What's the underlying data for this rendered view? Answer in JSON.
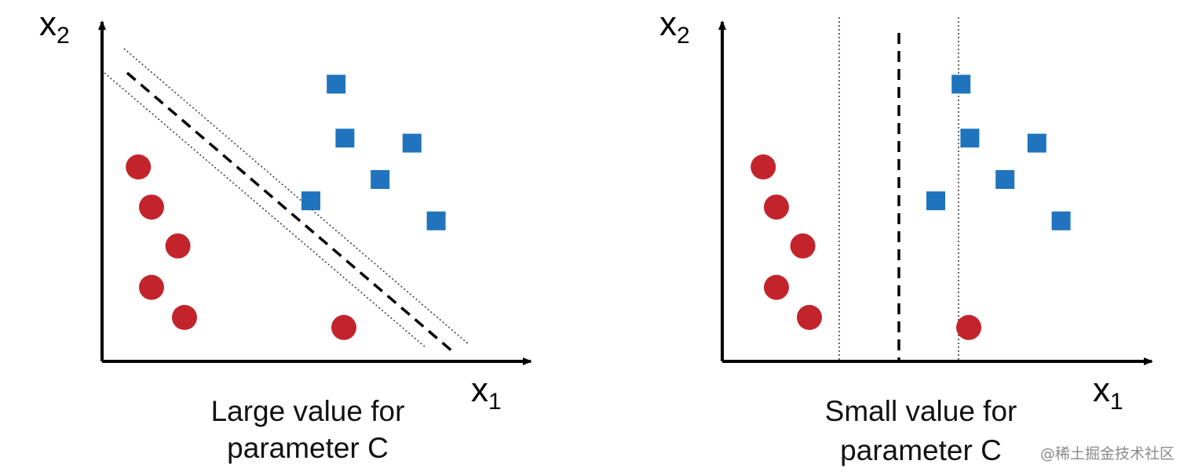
{
  "colors": {
    "axis": "#000000",
    "class_red": "#c3242b",
    "class_blue": "#1f74bd"
  },
  "panels": [
    {
      "id": "large-c",
      "axes": {
        "y_label": "x",
        "y_sub": "2",
        "x_label": "x",
        "x_sub": "1"
      },
      "caption": {
        "line1": "Large value for",
        "line2": "parameter C"
      },
      "boundary": "diagonal",
      "red_points": [
        [
          3.3,
          15.5
        ],
        [
          4.5,
          12.3
        ],
        [
          6.9,
          9.2
        ],
        [
          4.5,
          5.9
        ],
        [
          7.5,
          3.5
        ],
        [
          22.0,
          2.7
        ]
      ],
      "blue_points": [
        [
          21.3,
          22.1
        ],
        [
          22.1,
          17.8
        ],
        [
          25.3,
          14.5
        ],
        [
          19.0,
          12.8
        ],
        [
          28.2,
          17.4
        ],
        [
          30.4,
          11.2
        ]
      ]
    },
    {
      "id": "small-c",
      "axes": {
        "y_label": "x",
        "y_sub": "2",
        "x_label": "x",
        "x_sub": "1"
      },
      "caption": {
        "line1": "Small value for",
        "line2": "parameter C"
      },
      "boundary": "vertical",
      "red_points": [
        [
          3.3,
          15.5
        ],
        [
          4.5,
          12.3
        ],
        [
          6.9,
          9.2
        ],
        [
          4.5,
          5.9
        ],
        [
          7.5,
          3.5
        ],
        [
          22.0,
          2.7
        ]
      ],
      "blue_points": [
        [
          21.3,
          22.1
        ],
        [
          22.1,
          17.8
        ],
        [
          25.3,
          14.5
        ],
        [
          19.0,
          12.8
        ],
        [
          28.2,
          17.4
        ],
        [
          30.4,
          11.2
        ]
      ]
    }
  ],
  "watermark": "@稀土掘金技术社区"
}
